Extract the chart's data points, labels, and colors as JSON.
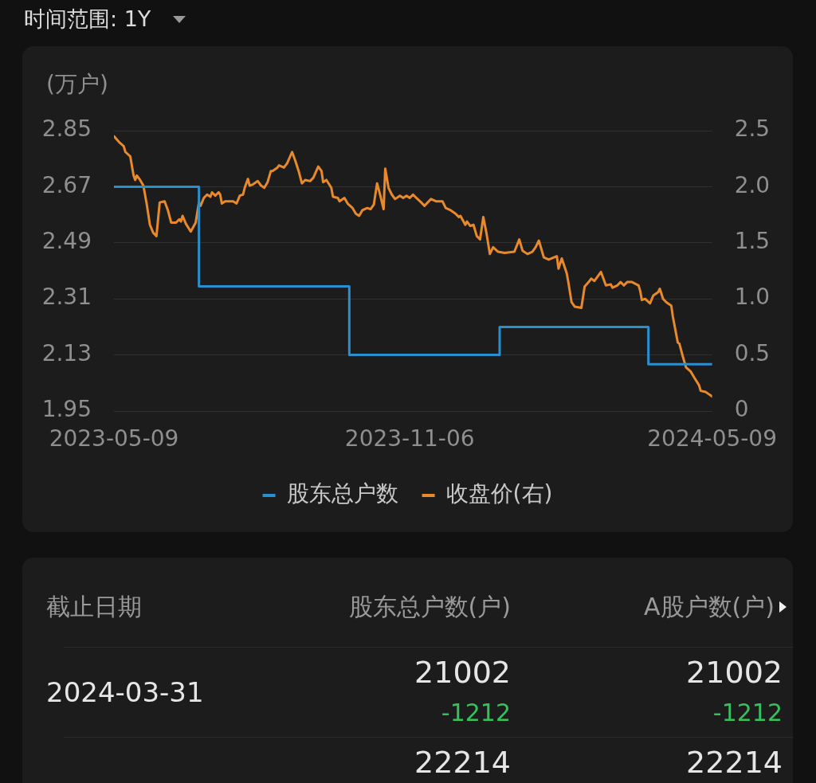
{
  "chart_data": [
    {
      "type": "line",
      "ylabel": "(万户)",
      "annotations": [
        "时间范围: 1Y"
      ],
      "xlim": [
        "2023-05-09",
        "2024-05-09"
      ],
      "xticks": [
        "2023-05-09",
        "2023-11-06",
        "2024-05-09"
      ],
      "ylim": [
        1.95,
        2.85
      ],
      "yticks": [
        1.95,
        2.13,
        2.31,
        2.49,
        2.67,
        2.85
      ],
      "y2lim": [
        0,
        2.5
      ],
      "y2ticks": [
        0,
        0.5,
        {
          "value": 1,
          "label": "1.0"
        },
        1.5,
        {
          "value": 2,
          "label": "2.0"
        },
        2.5
      ],
      "grid": "y",
      "legend": "bottom",
      "series": [
        {
          "name": "股东总户数",
          "type": "step",
          "color": "#2a8fcf",
          "x": [
            "2023-05-09",
            "2023-06-30",
            "2023-09-30",
            "2023-12-31",
            "2024-03-31",
            "2024-05-09"
          ],
          "values": [
            2.67,
            2.35,
            2.13,
            2.22,
            2.1,
            2.1
          ]
        },
        {
          "name": "收盘价(右)",
          "axis": "y2",
          "color": "#e8892b",
          "x": [
            "2023-05-09",
            "2023-05-12",
            "2023-05-15",
            "2023-05-16",
            "2023-05-19",
            "2023-05-21",
            "2023-05-22",
            "2023-05-23",
            "2023-05-25",
            "2023-05-27",
            "2023-05-29",
            "2023-05-31",
            "2023-06-02",
            "2023-06-04",
            "2023-06-05",
            "2023-06-06",
            "2023-06-09",
            "2023-06-11",
            "2023-06-13",
            "2023-06-16",
            "2023-06-18",
            "2023-06-19",
            "2023-06-20",
            "2023-06-22",
            "2023-06-25",
            "2023-06-28",
            "2023-06-30",
            "2023-07-01",
            "2023-07-03",
            "2023-07-05",
            "2023-07-07",
            "2023-07-08",
            "2023-07-10",
            "2023-07-12",
            "2023-07-13",
            "2023-07-14",
            "2023-07-16",
            "2023-07-21",
            "2023-07-23",
            "2023-07-25",
            "2023-07-27",
            "2023-07-28",
            "2023-07-30",
            "2023-07-31",
            "2023-08-02",
            "2023-08-05",
            "2023-08-07",
            "2023-08-09",
            "2023-08-11",
            "2023-08-13",
            "2023-08-14",
            "2023-08-17",
            "2023-08-18",
            "2023-08-21",
            "2023-08-23",
            "2023-08-26",
            "2023-08-28",
            "2023-08-30",
            "2023-09-01",
            "2023-09-03",
            "2023-09-06",
            "2023-09-08",
            "2023-09-11",
            "2023-09-13",
            "2023-09-14",
            "2023-09-16",
            "2023-09-19",
            "2023-09-20",
            "2023-09-23",
            "2023-09-24",
            "2023-09-27",
            "2023-09-29",
            "2023-10-02",
            "2023-10-04",
            "2023-10-06",
            "2023-10-08",
            "2023-10-11",
            "2023-10-13",
            "2023-10-15",
            "2023-10-17",
            "2023-10-19",
            "2023-10-21",
            "2023-10-22",
            "2023-10-24",
            "2023-10-26",
            "2023-10-28",
            "2023-10-31",
            "2023-11-02",
            "2023-11-04",
            "2023-11-06",
            "2023-11-08",
            "2023-11-10",
            "2023-11-13",
            "2023-11-15",
            "2023-11-19",
            "2023-11-22",
            "2023-11-26",
            "2023-11-28",
            "2023-12-01",
            "2023-12-04",
            "2023-12-06",
            "2023-12-07",
            "2023-12-10",
            "2023-12-11",
            "2023-12-13",
            "2023-12-15",
            "2023-12-17",
            "2023-12-19",
            "2023-12-21",
            "2023-12-23",
            "2023-12-25",
            "2023-12-27",
            "2023-12-30",
            "2024-01-03",
            "2024-01-09",
            "2024-01-12",
            "2024-01-14",
            "2024-01-17",
            "2024-01-20",
            "2024-01-22",
            "2024-01-24",
            "2024-01-27",
            "2024-01-30",
            "2024-02-04",
            "2024-02-05",
            "2024-02-07",
            "2024-02-10",
            "2024-02-11",
            "2024-02-13",
            "2024-02-15",
            "2024-02-19",
            "2024-02-21",
            "2024-02-24",
            "2024-02-25",
            "2024-02-27",
            "2024-03-02",
            "2024-03-05",
            "2024-03-08",
            "2024-03-09",
            "2024-03-12",
            "2024-03-14",
            "2024-03-16",
            "2024-03-18",
            "2024-03-21",
            "2024-03-25",
            "2024-03-26",
            "2024-03-27",
            "2024-03-29",
            "2024-04-01",
            "2024-04-03",
            "2024-04-06",
            "2024-04-07",
            "2024-04-09",
            "2024-04-11",
            "2024-04-14",
            "2024-04-15",
            "2024-04-18",
            "2024-04-19",
            "2024-04-21",
            "2024-04-23",
            "2024-04-26",
            "2024-04-28",
            "2024-05-01",
            "2024-05-02",
            "2024-05-05",
            "2024-05-07",
            "2024-05-09"
          ],
          "values": [
            2.45,
            2.4,
            2.36,
            2.31,
            2.27,
            2.1,
            2.06,
            2.1,
            2.06,
            2.01,
            1.85,
            1.66,
            1.59,
            1.56,
            1.71,
            1.86,
            1.87,
            1.79,
            1.68,
            1.68,
            1.71,
            1.69,
            1.74,
            1.67,
            1.6,
            1.68,
            1.86,
            1.83,
            1.9,
            1.93,
            1.91,
            1.95,
            1.92,
            1.95,
            1.93,
            1.85,
            1.87,
            1.87,
            1.85,
            1.92,
            1.93,
            1.99,
            2.07,
            2.01,
            2.02,
            2.05,
            2.01,
            1.99,
            2.04,
            2.14,
            2.14,
            2.17,
            2.19,
            2.17,
            2.21,
            2.31,
            2.23,
            2.14,
            2.03,
            2.06,
            2.05,
            2.08,
            2.18,
            2.14,
            2.04,
            2.06,
            1.99,
            1.91,
            1.9,
            1.87,
            1.9,
            1.85,
            1.81,
            1.76,
            1.74,
            1.79,
            1.81,
            1.8,
            1.84,
            2.03,
            1.92,
            1.8,
            2.16,
            1.99,
            1.93,
            1.89,
            1.92,
            1.9,
            1.92,
            1.9,
            1.93,
            1.9,
            1.86,
            1.83,
            1.89,
            1.87,
            1.87,
            1.81,
            1.79,
            1.76,
            1.73,
            1.74,
            1.66,
            1.69,
            1.65,
            1.66,
            1.56,
            1.53,
            1.73,
            1.58,
            1.4,
            1.46,
            1.42,
            1.41,
            1.42,
            1.53,
            1.43,
            1.4,
            1.42,
            1.46,
            1.52,
            1.37,
            1.35,
            1.38,
            1.27,
            1.36,
            1.23,
            1.15,
            0.97,
            0.93,
            0.92,
            1.11,
            1.16,
            1.18,
            1.16,
            1.24,
            1.12,
            1.13,
            1.1,
            1.12,
            1.15,
            1.12,
            1.15,
            1.15,
            1.12,
            1.07,
            0.99,
            1.0,
            0.96,
            1.03,
            1.06,
            1.09,
            1.0,
            0.97,
            0.94,
            0.84,
            0.61,
            0.6,
            0.49,
            0.39,
            0.35,
            0.3,
            0.23,
            0.18,
            0.17,
            0.15,
            0.13
          ]
        }
      ]
    },
    {
      "type": "other",
      "annotations": [
        "截止日期",
        "股东总户数(户)",
        "A股户数(户)",
        "2024-03-31",
        "21002",
        "-1212",
        "21002",
        "-1212",
        "22214",
        "22214"
      ]
    }
  ]
}
